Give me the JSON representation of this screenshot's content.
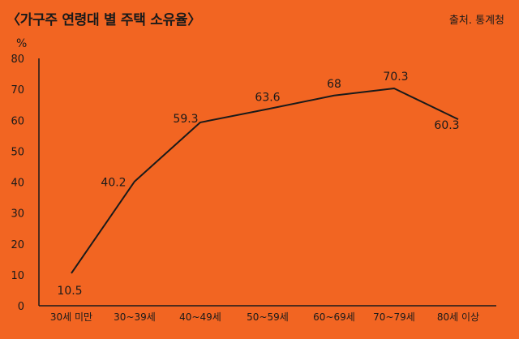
{
  "header": {
    "title": "〈가구주 연령대 별 주택 소유율〉",
    "source": "출처. 통계청"
  },
  "chart_data": {
    "type": "line",
    "title": "〈가구주 연령대 별 주택 소유율〉",
    "ylabel": "%",
    "xlabel": "",
    "categories": [
      "30세 미만",
      "30~39세",
      "40~49세",
      "50~59세",
      "60~69세",
      "70~79세",
      "80세 이상"
    ],
    "series": [
      {
        "values": [
          10.5,
          40.2,
          59.3,
          63.6,
          68,
          70.3,
          60.3
        ]
      }
    ],
    "data_labels": [
      "10.5",
      "40.2",
      "59.3",
      "63.6",
      "68",
      "70.3",
      "60.3"
    ],
    "ylim": [
      0,
      80
    ],
    "yticks": [
      "0",
      "10",
      "20",
      "30",
      "40",
      "50",
      "60",
      "70",
      "80"
    ],
    "grid": false,
    "line_color": "#1a1a1a",
    "background_color": "#F26522"
  }
}
